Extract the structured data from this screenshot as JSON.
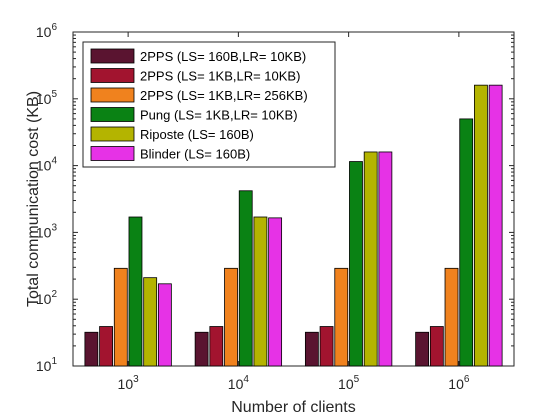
{
  "chart_data": {
    "type": "bar",
    "xlabel": "Number of clients",
    "ylabel": "Total communication cost (KB)",
    "y_scale": "log",
    "ylim": [
      10,
      1000000
    ],
    "y_ticks": [
      {
        "value": 10,
        "base": "10",
        "exp": "1"
      },
      {
        "value": 100,
        "base": "10",
        "exp": "2"
      },
      {
        "value": 1000,
        "base": "10",
        "exp": "3"
      },
      {
        "value": 10000,
        "base": "10",
        "exp": "4"
      },
      {
        "value": 100000,
        "base": "10",
        "exp": "5"
      },
      {
        "value": 1000000,
        "base": "10",
        "exp": "6"
      }
    ],
    "categories": [
      {
        "base": "10",
        "exp": "3"
      },
      {
        "base": "10",
        "exp": "4"
      },
      {
        "base": "10",
        "exp": "5"
      },
      {
        "base": "10",
        "exp": "6"
      }
    ],
    "grid": false,
    "legend_position": "top-left",
    "series": [
      {
        "name": "2PPS (LS= 160B,LR= 10KB)",
        "color": "#5a1430",
        "values": [
          32,
          32,
          32,
          32
        ]
      },
      {
        "name": "2PPS (LS= 1KB,LR= 10KB)",
        "color": "#a2142f",
        "values": [
          39,
          39,
          39,
          39
        ]
      },
      {
        "name": "2PPS (LS= 1KB,LR= 256KB)",
        "color": "#f0821e",
        "values": [
          290,
          290,
          290,
          290
        ]
      },
      {
        "name": "Pung (LS= 1KB,LR= 10KB)",
        "color": "#0a8214",
        "values": [
          1700,
          4200,
          11500,
          50000
        ]
      },
      {
        "name": "Riposte (LS= 160B)",
        "color": "#b4b400",
        "values": [
          210,
          1700,
          16000,
          160000
        ]
      },
      {
        "name": "Blinder (LS= 160B)",
        "color": "#e632e6",
        "values": [
          170,
          1650,
          16000,
          160000
        ]
      }
    ]
  }
}
